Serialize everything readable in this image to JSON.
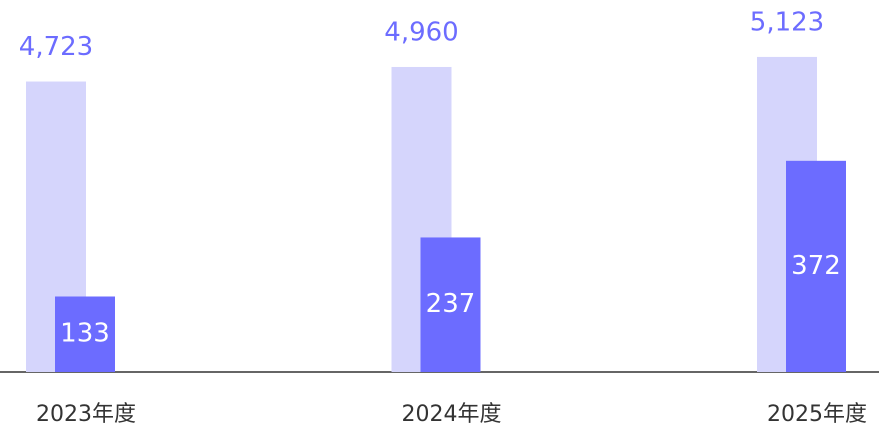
{
  "chart_data": {
    "type": "bar",
    "categories": [
      "2023年度",
      "2024年度",
      "2025年度"
    ],
    "series": [
      {
        "color": "#d5d5fc",
        "values": [
          4723,
          4960,
          5123
        ],
        "value_labels": [
          "4,723",
          "4,960",
          "5,123"
        ]
      },
      {
        "color": "#6c6cff",
        "values": [
          133,
          237,
          372
        ],
        "axis": "y2"
      }
    ],
    "ylim": [
      0,
      6000
    ],
    "y2lim": [
      0,
      650
    ]
  }
}
